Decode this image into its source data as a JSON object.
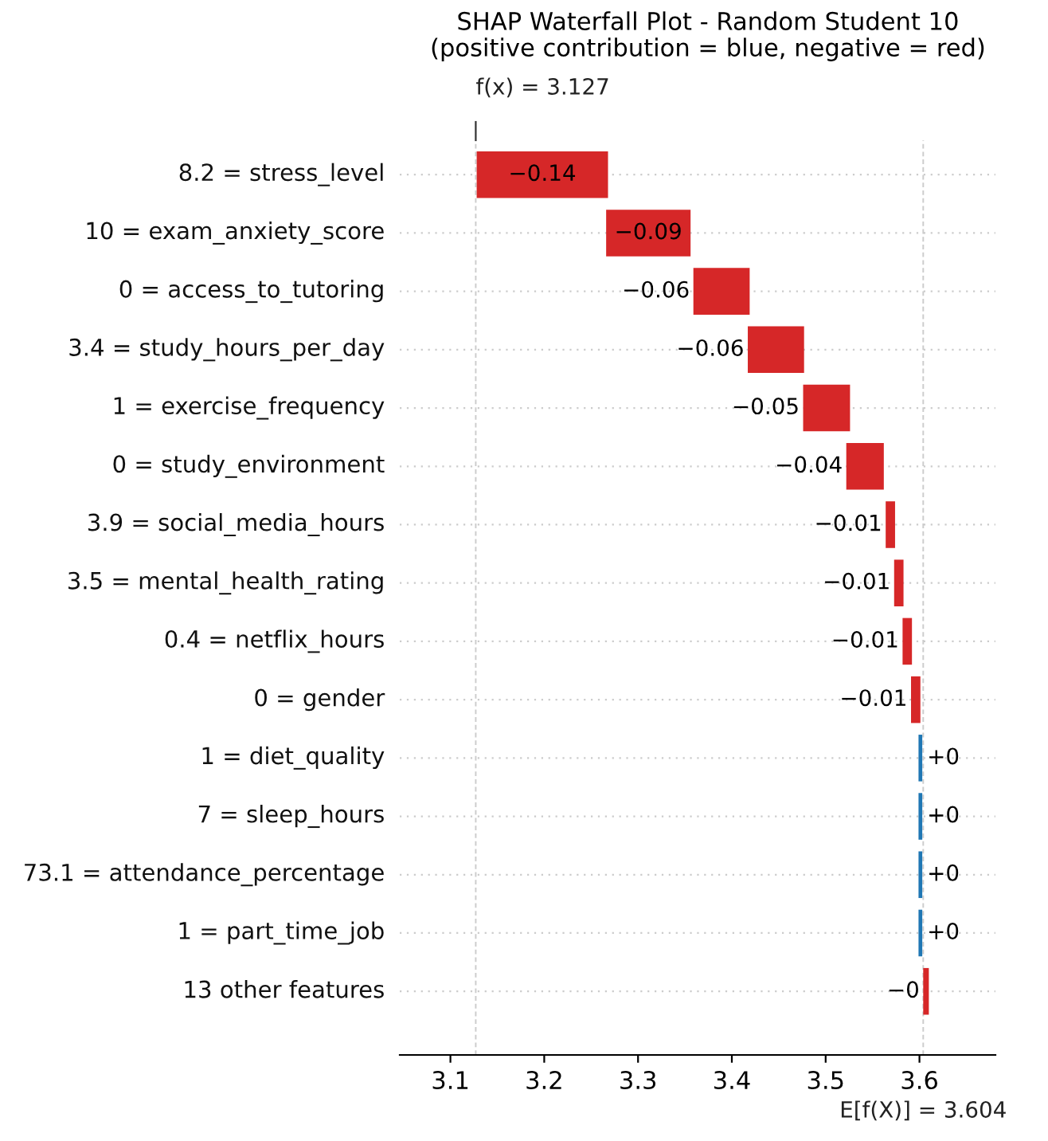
{
  "chart_data": {
    "type": "bar",
    "orientation": "horizontal",
    "title": "SHAP Waterfall Plot - Random Student 10\n(positive contribution = blue, negative = red)",
    "categories": [
      "8.2 = stress_level",
      "10 = exam_anxiety_score",
      "0 = access_to_tutoring",
      "3.4 = study_hours_per_day",
      "1 = exercise_frequency",
      "0 = study_environment",
      "3.9 = social_media_hours",
      "3.5 = mental_health_rating",
      "0.4 = netflix_hours",
      "0 = gender",
      "1 = diet_quality",
      "7 = sleep_hours",
      "73.1 = attendance_percentage",
      "1 = part_time_job",
      "13 other features"
    ],
    "values": [
      -0.14,
      -0.09,
      -0.06,
      -0.06,
      -0.05,
      -0.04,
      -0.01,
      -0.01,
      -0.01,
      -0.01,
      0.004,
      0.004,
      0.004,
      0.004,
      -0.006
    ],
    "base": [
      3.268,
      3.356,
      3.419,
      3.477,
      3.526,
      3.562,
      3.574,
      3.583,
      3.592,
      3.601,
      3.599,
      3.599,
      3.599,
      3.599,
      3.61
    ],
    "colors": [
      "#d62728",
      "#d62728",
      "#d62728",
      "#d62728",
      "#d62728",
      "#d62728",
      "#d62728",
      "#d62728",
      "#d62728",
      "#d62728",
      "#1f77b4",
      "#1f77b4",
      "#1f77b4",
      "#1f77b4",
      "#d62728"
    ],
    "value_labels": [
      "−0.14",
      "−0.09",
      "−0.06",
      "−0.06",
      "−0.05",
      "−0.04",
      "−0.01",
      "−0.01",
      "−0.01",
      "−0.01",
      "+0",
      "+0",
      "+0",
      "+0",
      "−0"
    ],
    "xlim": [
      3.046,
      3.681
    ],
    "xticks": [
      3.1,
      3.2,
      3.3,
      3.4,
      3.5,
      3.6
    ],
    "ref_lines": [
      {
        "axis": "x",
        "value": 3.127,
        "label": "f(x) = 3.127",
        "color": "#cccccc",
        "line_style": "dashed"
      },
      {
        "axis": "x",
        "value": 3.604,
        "label": "E[f(X)] = 3.604",
        "color": "#cccccc",
        "line_style": "dashed"
      }
    ],
    "grid": "y"
  }
}
